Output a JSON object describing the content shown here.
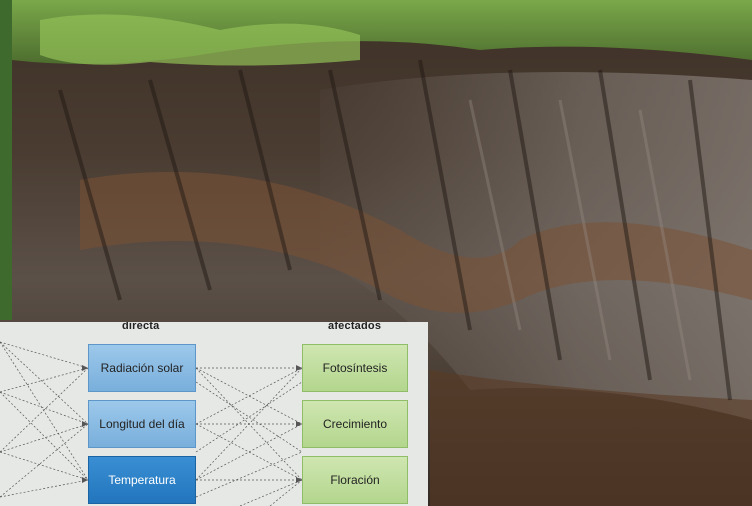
{
  "diagram": {
    "header_left": "directa",
    "header_right": "afectados",
    "factors": [
      "Radiación solar",
      "Longitud del día",
      "Temperatura"
    ],
    "processes": [
      "Fotosíntesis",
      "Crecimiento",
      "Floración"
    ]
  },
  "colors": {
    "factor_box": "#8fc0e6",
    "factor_box_highlight": "#2a80c8",
    "process_box": "#c2dea0",
    "panel_bg": "#e6e8e6"
  }
}
